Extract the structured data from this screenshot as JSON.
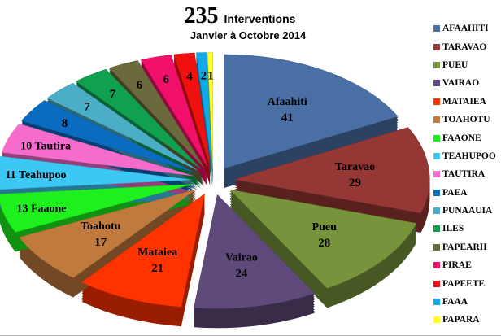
{
  "chart_data": {
    "type": "pie",
    "style": "3d-exploded",
    "title": "235",
    "title_suffix": "Interventions",
    "subtitle": "Janvier à Octobre 2014",
    "legend_position": "right",
    "slices": [
      {
        "legend": "AFAAHITI",
        "value": 41,
        "label": "Afaahiti",
        "color": "#4a6fa5"
      },
      {
        "legend": "TARAVAO",
        "value": 29,
        "label": "Taravao",
        "color": "#953735"
      },
      {
        "legend": "PUEU",
        "value": 28,
        "label": "Pueu",
        "color": "#77933c"
      },
      {
        "legend": "VAIRAO",
        "value": 24,
        "label": "Vairao",
        "color": "#604a7b"
      },
      {
        "legend": "MATAIEA",
        "value": 21,
        "label": "Mataiea",
        "color": "#ff3300"
      },
      {
        "legend": "TOAHOTU",
        "value": 17,
        "label": "Toahotu",
        "color": "#c17a3e"
      },
      {
        "legend": "FAAONE",
        "value": 13,
        "label": "Faaone",
        "color": "#1ef01e"
      },
      {
        "legend": "TEAHUPOO",
        "value": 11,
        "label": "Teahupoo",
        "color": "#3cc8f5"
      },
      {
        "legend": "TAUTIRA",
        "value": 10,
        "label": "Tautira",
        "color": "#f56ccc"
      },
      {
        "legend": "PAEA",
        "value": 8,
        "label": "",
        "color": "#0a6cc0"
      },
      {
        "legend": "PUNAAUIA",
        "value": 7,
        "label": "",
        "color": "#4badc6"
      },
      {
        "legend": "ILES",
        "value": 7,
        "label": "",
        "color": "#10a050"
      },
      {
        "legend": "PAPEARII",
        "value": 6,
        "label": "",
        "color": "#6b6a3c"
      },
      {
        "legend": "PIRAE",
        "value": 6,
        "label": "",
        "color": "#f0106a"
      },
      {
        "legend": "PAPEETE",
        "value": 4,
        "label": "",
        "color": "#f01010"
      },
      {
        "legend": "FAAA",
        "value": 2,
        "label": "",
        "color": "#10aae8"
      },
      {
        "legend": "PAPARA",
        "value": 1,
        "label": "",
        "color": "#ffff20"
      }
    ]
  }
}
